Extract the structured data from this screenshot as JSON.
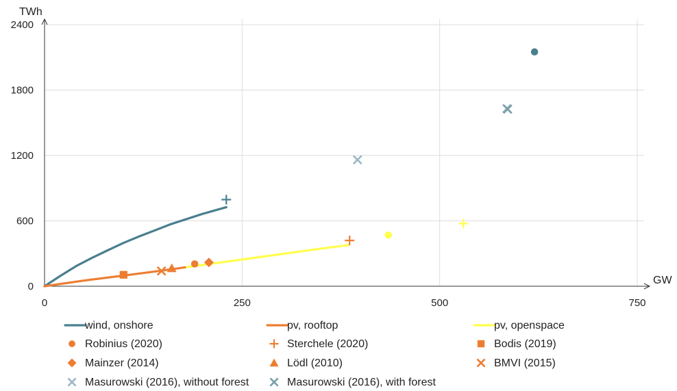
{
  "chart_data": {
    "type": "scatter",
    "xlabel": "GW",
    "ylabel": "TWh",
    "xlim": [
      0,
      750
    ],
    "ylim": [
      0,
      2400
    ],
    "x_ticks": [
      0,
      250,
      500,
      750
    ],
    "y_ticks": [
      0,
      600,
      1200,
      1800,
      2400
    ],
    "x_tick_labels": [
      "0",
      "250",
      "500",
      "750"
    ],
    "y_tick_labels": [
      "0",
      "600",
      "1200",
      "1800",
      "2400"
    ],
    "grid": true,
    "legend_position": "bottom",
    "lines": [
      {
        "name": "wind, onshore",
        "color": "#4a7f8f",
        "x": [
          0,
          20,
          40,
          60,
          80,
          100,
          120,
          140,
          160,
          180,
          200,
          215,
          230
        ],
        "y": [
          0,
          95,
          185,
          260,
          330,
          398,
          458,
          514,
          570,
          617,
          664,
          695,
          725
        ]
      },
      {
        "name": "pv, rooftop",
        "color": "#ed7d31",
        "x": [
          0,
          50,
          100,
          150,
          180
        ],
        "y": [
          0,
          52,
          98,
          145,
          175
        ]
      },
      {
        "name": "pv, openspace",
        "color": "#ffff4d",
        "x": [
          180,
          250,
          300,
          350,
          385
        ],
        "y": [
          175,
          245,
          295,
          345,
          378
        ]
      }
    ],
    "points": [
      {
        "series": "Robinius (2020)",
        "marker": "circle",
        "color": "#ed7d31",
        "x": 190,
        "y": 205
      },
      {
        "series": "Robinius (2020)",
        "marker": "circle",
        "color": "#ffff4d",
        "x": 435,
        "y": 470
      },
      {
        "series": "Robinius (2020)",
        "marker": "circle",
        "color": "#4a7f8f",
        "x": 620,
        "y": 2150
      },
      {
        "series": "Sterchele (2020)",
        "marker": "plus",
        "color": "#4a7f8f",
        "x": 230,
        "y": 795
      },
      {
        "series": "Sterchele (2020)",
        "marker": "plus",
        "color": "#ed7d31",
        "x": 386,
        "y": 420
      },
      {
        "series": "Sterchele (2020)",
        "marker": "plus",
        "color": "#ffff4d",
        "x": 530,
        "y": 575
      },
      {
        "series": "Bodis (2019)",
        "marker": "square",
        "color": "#ed7d31",
        "x": 100,
        "y": 105
      },
      {
        "series": "Mainzer (2014)",
        "marker": "diamond",
        "color": "#ed7d31",
        "x": 208,
        "y": 218
      },
      {
        "series": "Lödl (2010)",
        "marker": "triangle",
        "color": "#ed7d31",
        "x": 161,
        "y": 165
      },
      {
        "series": "BMVI (2015)",
        "marker": "x",
        "color": "#ed7d31",
        "x": 148,
        "y": 140
      },
      {
        "series": "Masurowski (2016), without forest",
        "marker": "x",
        "color": "#9bb7c3",
        "x": 396,
        "y": 1160
      },
      {
        "series": "Masurowski (2016), without forest",
        "marker": "x",
        "color": "#9bb7c3",
        "x": 585,
        "y": 1630
      },
      {
        "series": "Masurowski (2016), with forest",
        "marker": "x",
        "color": "#7a9dab",
        "x": 586,
        "y": 1625
      }
    ],
    "legend": [
      {
        "label": "wind, onshore",
        "kind": "line",
        "marker": "line",
        "color": "#4a7f8f"
      },
      {
        "label": "pv, rooftop",
        "kind": "line",
        "marker": "line",
        "color": "#ed7d31"
      },
      {
        "label": "pv, openspace",
        "kind": "line",
        "marker": "line",
        "color": "#ffff4d"
      },
      {
        "label": "Robinius (2020)",
        "kind": "marker",
        "marker": "circle",
        "color": "#ed7d31"
      },
      {
        "label": "Sterchele (2020)",
        "kind": "marker",
        "marker": "plus",
        "color": "#ed7d31"
      },
      {
        "label": "Bodis (2019)",
        "kind": "marker",
        "marker": "square",
        "color": "#ed7d31"
      },
      {
        "label": "Mainzer (2014)",
        "kind": "marker",
        "marker": "diamond",
        "color": "#ed7d31"
      },
      {
        "label": "Lödl (2010)",
        "kind": "marker",
        "marker": "triangle",
        "color": "#ed7d31"
      },
      {
        "label": "BMVI (2015)",
        "kind": "marker",
        "marker": "x",
        "color": "#ed7d31"
      },
      {
        "label": "Masurowski (2016), without forest",
        "kind": "marker",
        "marker": "x",
        "color": "#9bb7c3"
      },
      {
        "label": "Masurowski (2016), with forest",
        "kind": "marker",
        "marker": "x",
        "color": "#7a9dab"
      }
    ]
  }
}
